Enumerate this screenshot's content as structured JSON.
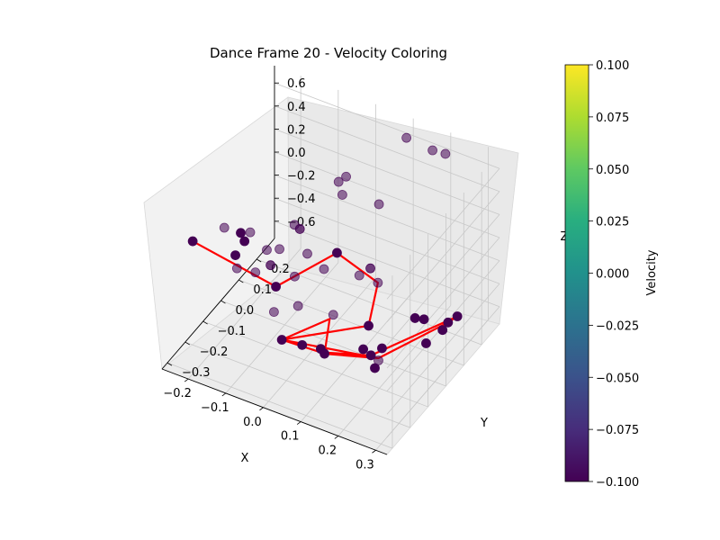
{
  "chart_data": {
    "type": "scatter3d",
    "title": "Dance Frame 20 - Velocity Coloring",
    "xlabel": "X",
    "ylabel": "Y",
    "zlabel": "Z",
    "xlim": [
      -0.27,
      0.33
    ],
    "ylim": [
      -0.33,
      0.3
    ],
    "zlim": [
      -0.75,
      0.75
    ],
    "x_ticks": [
      "−0.2",
      "−0.1",
      "0.0",
      "0.1",
      "0.2",
      "0.3"
    ],
    "y_ticks": [
      "−0.3",
      "−0.2",
      "−0.1",
      "0.0",
      "0.1",
      "0.2"
    ],
    "z_ticks": [
      "−0.6",
      "−0.4",
      "−0.2",
      "0.0",
      "0.2",
      "0.4",
      "0.6"
    ],
    "grid": true,
    "marker_color": "#440154",
    "line_color": "#ff0000",
    "colorbar": {
      "label": "Velocity",
      "range": [
        -0.1,
        0.1
      ],
      "ticks": [
        "0.100",
        "0.075",
        "0.050",
        "0.025",
        "0.000",
        "−0.025",
        "−0.050",
        "−0.075",
        "−0.100"
      ],
      "colormap": "viridis"
    },
    "points": [
      {
        "x": 0.12,
        "y": 0.22,
        "z": 0.75,
        "opacity": 0.55
      },
      {
        "x": 0.18,
        "y": 0.24,
        "z": 0.68,
        "opacity": 0.55
      },
      {
        "x": 0.2,
        "y": 0.27,
        "z": 0.62,
        "opacity": 0.55
      },
      {
        "x": 0.04,
        "y": 0.05,
        "z": 0.62,
        "opacity": 0.55
      },
      {
        "x": 0.02,
        "y": 0.05,
        "z": 0.55,
        "opacity": 0.55
      },
      {
        "x": 0.03,
        "y": 0.05,
        "z": 0.45,
        "opacity": 0.55
      },
      {
        "x": 0.08,
        "y": 0.15,
        "z": 0.25,
        "opacity": 0.55
      },
      {
        "x": -0.05,
        "y": -0.05,
        "z": 0.27,
        "opacity": 0.55
      },
      {
        "x": -0.05,
        "y": -0.02,
        "z": 0.18,
        "opacity": 0.75
      },
      {
        "x": -0.13,
        "y": -0.13,
        "z": 0.25,
        "opacity": 0.55
      },
      {
        "x": -0.18,
        "y": -0.17,
        "z": 0.3,
        "opacity": 0.55
      },
      {
        "x": -0.16,
        "y": -0.12,
        "z": 0.19,
        "opacity": 1.0
      },
      {
        "x": -0.15,
        "y": -0.12,
        "z": 0.13,
        "opacity": 1.0
      },
      {
        "x": -0.16,
        "y": -0.15,
        "z": 0.05,
        "opacity": 1.0
      },
      {
        "x": -0.1,
        "y": -0.1,
        "z": 0.08,
        "opacity": 0.55
      },
      {
        "x": -0.09,
        "y": -0.05,
        "z": 0.01,
        "opacity": 0.55
      },
      {
        "x": -0.03,
        "y": -0.02,
        "z": -0.01,
        "opacity": 0.55
      },
      {
        "x": -0.09,
        "y": -0.1,
        "z": -0.04,
        "opacity": 0.75
      },
      {
        "x": -0.04,
        "y": -0.07,
        "z": -0.13,
        "opacity": 0.55
      },
      {
        "x": -0.17,
        "y": -0.12,
        "z": -0.13,
        "opacity": 0.55
      },
      {
        "x": -0.14,
        "y": -0.08,
        "z": -0.2,
        "opacity": 0.55
      },
      {
        "x": 0.0,
        "y": 0.01,
        "z": -0.16,
        "opacity": 0.55
      },
      {
        "x": 0.03,
        "y": 0.02,
        "z": 0.0,
        "opacity": 1.0
      },
      {
        "x": 0.08,
        "y": 0.04,
        "z": -0.17,
        "opacity": 0.55
      },
      {
        "x": 0.1,
        "y": 0.06,
        "z": -0.12,
        "opacity": 0.75
      },
      {
        "x": 0.12,
        "y": 0.06,
        "z": -0.22,
        "opacity": 0.55
      },
      {
        "x": -0.25,
        "y": -0.2,
        "z": 0.15,
        "opacity": 1.0
      },
      {
        "x": -0.09,
        "y": -0.07,
        "z": -0.28,
        "opacity": 1.0
      },
      {
        "x": -0.05,
        "y": -0.03,
        "z": -0.47,
        "opacity": 0.55
      },
      {
        "x": 0.02,
        "y": 0.02,
        "z": -0.55,
        "opacity": 0.55
      },
      {
        "x": 0.1,
        "y": 0.05,
        "z": -0.6,
        "opacity": 1.0
      },
      {
        "x": 0.15,
        "y": 0.02,
        "z": -0.68,
        "opacity": 1.0
      },
      {
        "x": 0.2,
        "y": 0.15,
        "z": -0.6,
        "opacity": 1.0
      },
      {
        "x": 0.25,
        "y": 0.18,
        "z": -0.62,
        "opacity": 1.0
      },
      {
        "x": 0.27,
        "y": 0.19,
        "z": -0.56,
        "opacity": 1.0
      },
      {
        "x": 0.24,
        "y": 0.17,
        "z": -0.68,
        "opacity": 1.0
      },
      {
        "x": 0.22,
        "y": 0.12,
        "z": -0.73,
        "opacity": 1.0
      },
      {
        "x": -0.1,
        "y": -0.06,
        "z": -0.53,
        "opacity": 0.55
      },
      {
        "x": -0.06,
        "y": -0.1,
        "z": -0.65,
        "opacity": 1.0
      },
      {
        "x": -0.02,
        "y": -0.07,
        "z": -0.7,
        "opacity": 1.0
      },
      {
        "x": 0.02,
        "y": -0.05,
        "z": -0.72,
        "opacity": 1.0
      },
      {
        "x": 0.03,
        "y": -0.05,
        "z": -0.75,
        "opacity": 1.0
      },
      {
        "x": 0.1,
        "y": 0.02,
        "z": -0.75,
        "opacity": 1.0
      },
      {
        "x": 0.13,
        "y": 0.0,
        "z": -0.73,
        "opacity": 1.0
      },
      {
        "x": 0.15,
        "y": 0.0,
        "z": -0.75,
        "opacity": 0.55
      },
      {
        "x": 0.15,
        "y": -0.02,
        "z": -0.78,
        "opacity": 1.0
      },
      {
        "x": 0.2,
        "y": 0.1,
        "z": -0.5,
        "opacity": 1.0
      }
    ],
    "line_path": [
      {
        "x": -0.25,
        "y": -0.2,
        "z": 0.15
      },
      {
        "x": -0.09,
        "y": -0.07,
        "z": -0.28
      },
      {
        "x": 0.03,
        "y": 0.02,
        "z": 0.0
      },
      {
        "x": 0.12,
        "y": 0.06,
        "z": -0.22
      },
      {
        "x": 0.1,
        "y": 0.05,
        "z": -0.6
      },
      {
        "x": -0.06,
        "y": -0.1,
        "z": -0.65
      },
      {
        "x": 0.15,
        "y": 0.0,
        "z": -0.73
      },
      {
        "x": 0.25,
        "y": 0.18,
        "z": -0.62
      },
      {
        "x": 0.27,
        "y": 0.19,
        "z": -0.56
      },
      {
        "x": 0.13,
        "y": 0.0,
        "z": -0.73
      },
      {
        "x": 0.02,
        "y": -0.05,
        "z": -0.75
      },
      {
        "x": -0.06,
        "y": -0.1,
        "z": -0.65
      },
      {
        "x": 0.02,
        "y": 0.0,
        "z": -0.55
      },
      {
        "x": 0.03,
        "y": -0.05,
        "z": -0.75
      },
      {
        "x": 0.15,
        "y": 0.0,
        "z": -0.73
      }
    ]
  }
}
